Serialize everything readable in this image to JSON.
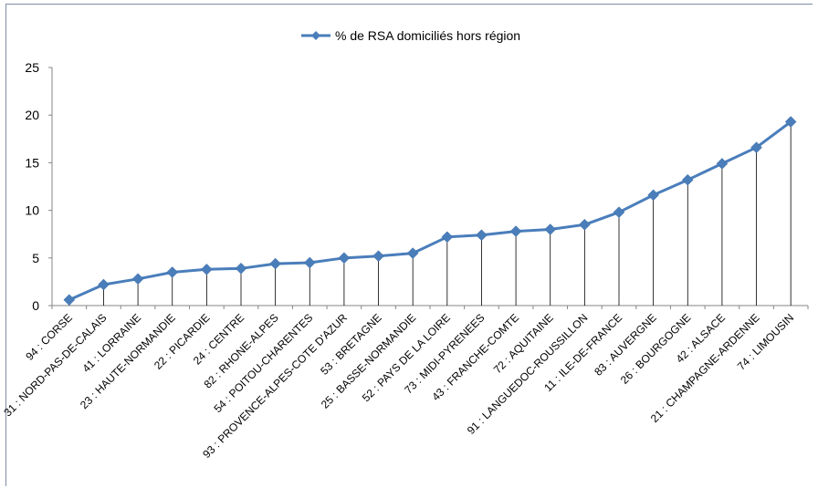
{
  "chart_data": {
    "type": "line",
    "legend": {
      "position": "top",
      "label": "% de RSA domiciliés hors région"
    },
    "ylim": [
      0,
      25
    ],
    "yticks": [
      0,
      5,
      10,
      15,
      20,
      25
    ],
    "grid": false,
    "drop_lines": true,
    "series_color": "#4a7ebb",
    "categories": [
      "94 : CORSE",
      "31 : NORD-PAS-DE-CALAIS",
      "41 : LORRAINE",
      "23 : HAUTE-NORMANDIE",
      "22 : PICARDIE",
      "24 : CENTRE",
      "82 : RHONE-ALPES",
      "54 : POITOU-CHARENTES",
      "93 : PROVENCE-ALPES-COTE D'AZUR",
      "53 : BRETAGNE",
      "25 : BASSE-NORMANDIE",
      "52 : PAYS DE LA LOIRE",
      "73 : MIDI-PYRENEES",
      "43 : FRANCHE-COMTE",
      "72 : AQUITAINE",
      "91 : LANGUEDOC-ROUSSILLON",
      "11 : ILE-DE-FRANCE",
      "83 : AUVERGNE",
      "26 : BOURGOGNE",
      "42 : ALSACE",
      "21 : CHAMPAGNE-ARDENNE",
      "74 : LIMOUSIN"
    ],
    "series": [
      {
        "name": "% de RSA domiciliés hors région",
        "values": [
          0.6,
          2.2,
          2.8,
          3.5,
          3.8,
          3.9,
          4.4,
          4.5,
          5.0,
          5.2,
          5.5,
          7.2,
          7.4,
          7.8,
          8.0,
          8.5,
          9.8,
          11.6,
          13.2,
          14.9,
          16.6,
          19.3
        ]
      }
    ]
  }
}
